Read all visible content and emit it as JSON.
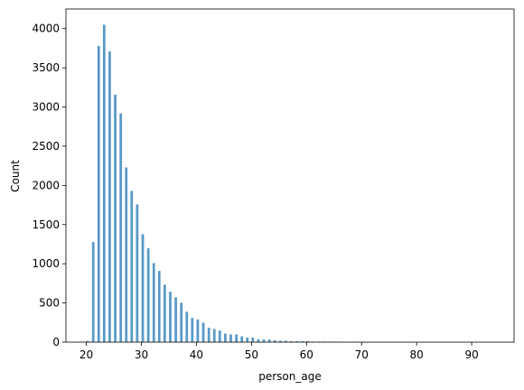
{
  "chart_data": {
    "type": "bar",
    "title": "",
    "xlabel": "person_age",
    "ylabel": "Count",
    "xlim": [
      16.3,
      97.7
    ],
    "ylim": [
      0,
      4250
    ],
    "xticks": [
      20,
      30,
      40,
      50,
      60,
      70,
      80,
      90
    ],
    "yticks": [
      0,
      500,
      1000,
      1500,
      2000,
      2500,
      3000,
      3500,
      4000
    ],
    "grid": false,
    "bar_color": "#1f77b4",
    "bar_edge_color": "#ffffff",
    "bar_width": 0.5,
    "x": [
      20,
      21,
      22,
      23,
      24,
      25,
      26,
      27,
      28,
      29,
      30,
      31,
      32,
      33,
      34,
      35,
      36,
      37,
      38,
      39,
      40,
      41,
      42,
      43,
      44,
      45,
      46,
      47,
      48,
      49,
      50,
      51,
      52,
      53,
      54,
      55,
      56,
      57,
      58,
      59,
      60,
      61,
      62,
      63,
      64,
      65,
      66,
      69,
      70,
      73,
      76,
      78,
      80,
      84,
      94
    ],
    "values": [
      17,
      1280,
      3780,
      4050,
      3710,
      3160,
      2920,
      2230,
      1930,
      1760,
      1380,
      1200,
      1010,
      910,
      735,
      645,
      575,
      505,
      390,
      310,
      290,
      250,
      185,
      170,
      150,
      110,
      100,
      100,
      75,
      60,
      60,
      40,
      35,
      35,
      25,
      20,
      20,
      15,
      15,
      15,
      15,
      10,
      10,
      10,
      8,
      8,
      8,
      6,
      6,
      5,
      2,
      2,
      2,
      2,
      2
    ]
  }
}
